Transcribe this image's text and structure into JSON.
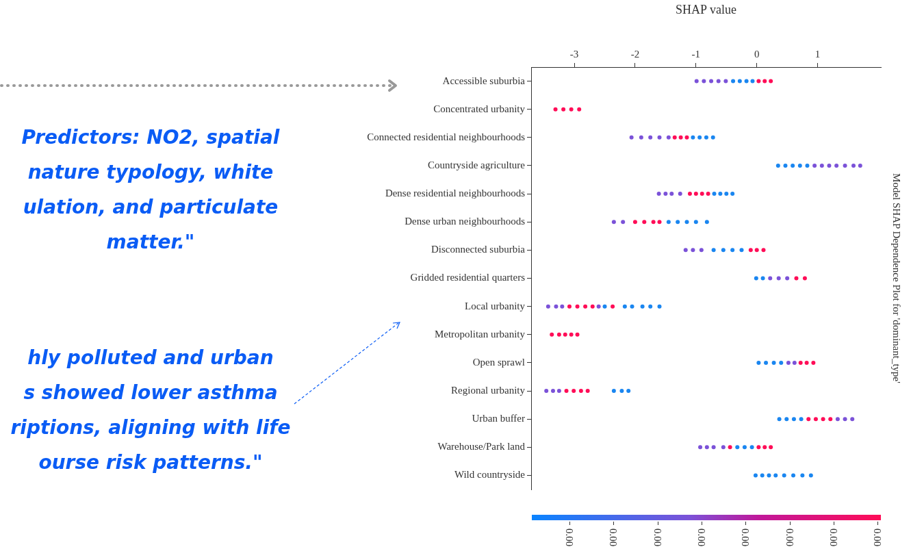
{
  "chart_data": {
    "type": "scatter",
    "orientation": "horizontal",
    "title": "Model SHAP Dependence Plot for 'dominant_type'",
    "xlabel": "SHAP value",
    "categories": [
      "Accessible suburbia",
      "Concentrated urbanity",
      "Connected residential neighbourhoods",
      "Countryside agriculture",
      "Dense residential neighbourhoods",
      "Dense urban neighbourhoods",
      "Disconnected suburbia",
      "Gridded residential quarters",
      "Local urbanity",
      "Metropolitan urbanity",
      "Open sprawl",
      "Regional urbanity",
      "Urban buffer",
      "Warehouse/Park land",
      "Wild countryside"
    ],
    "xlim": [
      -3.71,
      2.04
    ],
    "xticks": [
      -3,
      -2,
      -1,
      0,
      1
    ],
    "marker": "circle",
    "series": [
      {
        "color": "#1a86f0",
        "x": [
          "Accessible suburbia",
          "Accessible suburbia",
          "Accessible suburbia",
          "Accessible suburbia",
          "Connected residential neighbourhoods",
          "Connected residential neighbourhoods",
          "Connected residential neighbourhoods",
          "Connected residential neighbourhoods",
          "Countryside agriculture",
          "Countryside agriculture",
          "Countryside agriculture",
          "Countryside agriculture",
          "Countryside agriculture",
          "Dense residential neighbourhoods",
          "Dense residential neighbourhoods",
          "Dense residential neighbourhoods",
          "Dense residential neighbourhoods",
          "Dense urban neighbourhoods",
          "Dense urban neighbourhoods",
          "Dense urban neighbourhoods",
          "Dense urban neighbourhoods",
          "Dense urban neighbourhoods",
          "Disconnected suburbia",
          "Disconnected suburbia",
          "Disconnected suburbia",
          "Disconnected suburbia",
          "Gridded residential quarters",
          "Gridded residential quarters",
          "Local urbanity",
          "Local urbanity",
          "Local urbanity",
          "Local urbanity",
          "Local urbanity",
          "Local urbanity",
          "Open sprawl",
          "Open sprawl",
          "Open sprawl",
          "Open sprawl",
          "Regional urbanity",
          "Regional urbanity",
          "Regional urbanity",
          "Urban buffer",
          "Urban buffer",
          "Urban buffer",
          "Urban buffer",
          "Warehouse/Park land",
          "Warehouse/Park land",
          "Warehouse/Park land",
          "Wild countryside",
          "Wild countryside",
          "Wild countryside",
          "Wild countryside",
          "Wild countryside",
          "Wild countryside",
          "Wild countryside",
          "Wild countryside"
        ],
        "values": [
          -0.39,
          -0.28,
          -0.17,
          -0.07,
          -1.05,
          -0.94,
          -0.83,
          -0.72,
          0.35,
          0.47,
          0.59,
          0.71,
          0.83,
          -0.7,
          -0.6,
          -0.5,
          -0.4,
          -1.45,
          -1.3,
          -1.15,
          -1.0,
          -0.82,
          -0.71,
          -0.55,
          -0.4,
          -0.25,
          -0.01,
          0.1,
          -2.5,
          -2.17,
          -2.05,
          -1.88,
          -1.75,
          -1.6,
          0.03,
          0.15,
          0.28,
          0.4,
          -2.35,
          -2.22,
          -2.11,
          0.37,
          0.49,
          0.61,
          0.73,
          -0.32,
          -0.2,
          -0.08,
          -0.02,
          0.09,
          0.2,
          0.31,
          0.45,
          0.6,
          0.75,
          0.89
        ]
      },
      {
        "color": "#7b52d8",
        "x": [
          "Accessible suburbia",
          "Accessible suburbia",
          "Accessible suburbia",
          "Accessible suburbia",
          "Accessible suburbia",
          "Connected residential neighbourhoods",
          "Connected residential neighbourhoods",
          "Connected residential neighbourhoods",
          "Connected residential neighbourhoods",
          "Connected residential neighbourhoods",
          "Countryside agriculture",
          "Countryside agriculture",
          "Countryside agriculture",
          "Countryside agriculture",
          "Countryside agriculture",
          "Countryside agriculture",
          "Countryside agriculture",
          "Dense residential neighbourhoods",
          "Dense residential neighbourhoods",
          "Dense residential neighbourhoods",
          "Dense residential neighbourhoods",
          "Dense urban neighbourhoods",
          "Dense urban neighbourhoods",
          "Disconnected suburbia",
          "Disconnected suburbia",
          "Disconnected suburbia",
          "Gridded residential quarters",
          "Gridded residential quarters",
          "Gridded residential quarters",
          "Local urbanity",
          "Local urbanity",
          "Local urbanity",
          "Local urbanity",
          "Open sprawl",
          "Open sprawl",
          "Regional urbanity",
          "Regional urbanity",
          "Regional urbanity",
          "Urban buffer",
          "Urban buffer",
          "Urban buffer",
          "Warehouse/Park land",
          "Warehouse/Park land",
          "Warehouse/Park land",
          "Warehouse/Park land"
        ],
        "values": [
          -0.99,
          -0.87,
          -0.75,
          -0.63,
          -0.51,
          -2.06,
          -1.9,
          -1.75,
          -1.6,
          -1.45,
          0.95,
          1.07,
          1.19,
          1.31,
          1.45,
          1.59,
          1.7,
          -1.61,
          -1.5,
          -1.4,
          -1.26,
          -2.35,
          -2.2,
          -1.17,
          -1.05,
          -0.91,
          0.22,
          0.36,
          0.5,
          -3.43,
          -3.3,
          -3.2,
          -2.6,
          0.52,
          0.62,
          -3.46,
          -3.35,
          -3.25,
          1.33,
          1.45,
          1.57,
          -0.93,
          -0.82,
          -0.71,
          -0.55
        ]
      },
      {
        "color": "#ff0d57",
        "x": [
          "Accessible suburbia",
          "Accessible suburbia",
          "Accessible suburbia",
          "Concentrated urbanity",
          "Concentrated urbanity",
          "Concentrated urbanity",
          "Concentrated urbanity",
          "Connected residential neighbourhoods",
          "Connected residential neighbourhoods",
          "Connected residential neighbourhoods",
          "Dense residential neighbourhoods",
          "Dense residential neighbourhoods",
          "Dense residential neighbourhoods",
          "Dense residential neighbourhoods",
          "Dense urban neighbourhoods",
          "Dense urban neighbourhoods",
          "Dense urban neighbourhoods",
          "Dense urban neighbourhoods",
          "Disconnected suburbia",
          "Disconnected suburbia",
          "Disconnected suburbia",
          "Gridded residential quarters",
          "Gridded residential quarters",
          "Local urbanity",
          "Local urbanity",
          "Local urbanity",
          "Local urbanity",
          "Local urbanity",
          "Metropolitan urbanity",
          "Metropolitan urbanity",
          "Metropolitan urbanity",
          "Metropolitan urbanity",
          "Metropolitan urbanity",
          "Open sprawl",
          "Open sprawl",
          "Open sprawl",
          "Regional urbanity",
          "Regional urbanity",
          "Regional urbanity",
          "Regional urbanity",
          "Urban buffer",
          "Urban buffer",
          "Urban buffer",
          "Urban buffer",
          "Warehouse/Park land",
          "Warehouse/Park land",
          "Warehouse/Park land",
          "Warehouse/Park land"
        ],
        "values": [
          0.03,
          0.13,
          0.23,
          -3.31,
          -3.18,
          -3.05,
          -2.92,
          -1.35,
          -1.25,
          -1.15,
          -1.1,
          -1.0,
          -0.9,
          -0.8,
          -2.0,
          -1.85,
          -1.7,
          -1.6,
          -0.1,
          0.0,
          0.11,
          0.65,
          0.79,
          -3.08,
          -2.95,
          -2.82,
          -2.7,
          -2.37,
          -3.37,
          -3.25,
          -3.15,
          -3.05,
          -2.95,
          0.72,
          0.82,
          0.93,
          -3.13,
          -3.01,
          -2.89,
          -2.78,
          0.85,
          0.97,
          1.09,
          1.21,
          -0.44,
          0.03,
          0.13,
          0.23
        ]
      }
    ],
    "annotations": [
      "Predictors: NO2, spatial\nnature typology, white\nulation, and particulate\nmatter.\"",
      "hly polluted and urban\ns showed lower asthma\nriptions, aligning with life\nourse risk patterns.\"",
      "0.00",
      "0.00",
      "0.00",
      "0.00",
      "0.00",
      "0.00",
      "0.00",
      "0.00"
    ]
  }
}
